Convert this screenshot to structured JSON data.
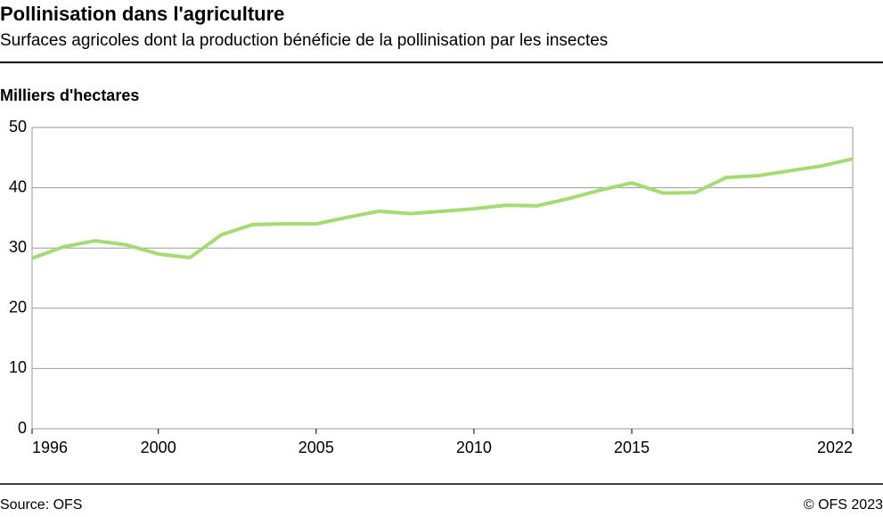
{
  "chart_data": {
    "type": "line",
    "title": "Pollinisation dans l'agriculture",
    "subtitle": "Surfaces agricoles dont la production bénéficie de la pollinisation par les insectes",
    "y_label": "Milliers d'hectares",
    "source": "Source: OFS",
    "credit": "© OFS 2023",
    "x": [
      1996,
      1997,
      1998,
      1999,
      2000,
      2001,
      2002,
      2003,
      2004,
      2005,
      2006,
      2007,
      2008,
      2009,
      2010,
      2011,
      2012,
      2013,
      2014,
      2015,
      2016,
      2017,
      2018,
      2019,
      2020,
      2021,
      2022
    ],
    "series": [
      {
        "color": "#a6db72",
        "values": [
          28.3,
          30.2,
          31.2,
          30.5,
          29.0,
          28.4,
          32.2,
          33.9,
          34.0,
          34.0,
          35.1,
          36.1,
          35.7,
          36.1,
          36.5,
          37.1,
          37.0,
          38.2,
          39.6,
          40.8,
          39.1,
          39.2,
          41.7,
          42.0,
          42.8,
          43.6,
          44.8
        ]
      }
    ],
    "xlim": [
      1996,
      2022
    ],
    "xticks": [
      1996,
      2000,
      2005,
      2010,
      2015,
      2022
    ],
    "ylim": [
      0,
      50
    ],
    "yticks": [
      0,
      10,
      20,
      30,
      40,
      50
    ],
    "grid": true
  }
}
